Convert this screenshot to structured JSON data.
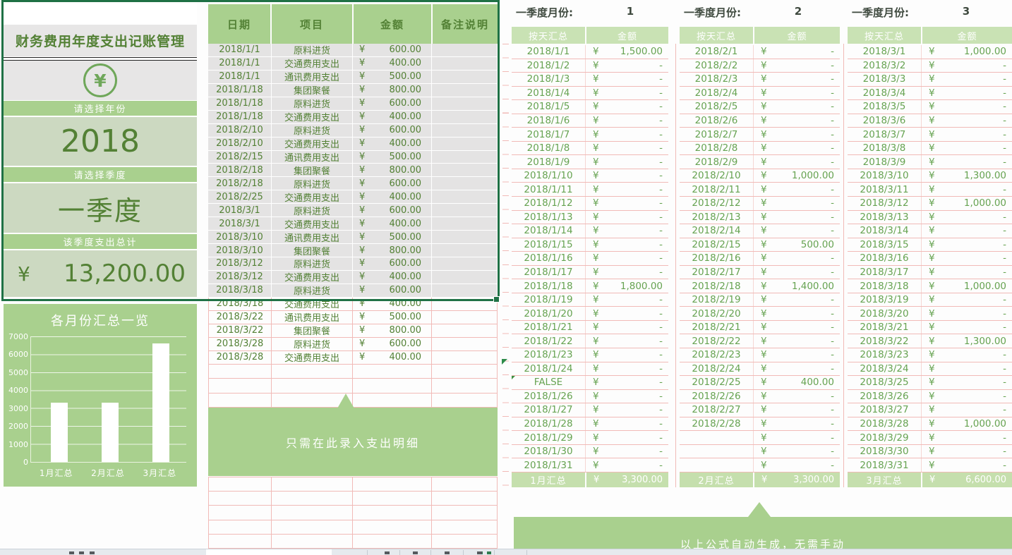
{
  "left_panel": {
    "title": "财务费用年度支出记账管理",
    "icon": "yuan-circle-icon",
    "icon_glyph": "¥",
    "year_prompt": "请选择年份",
    "year_value": "2018",
    "quarter_prompt": "请选择季度",
    "quarter_value": "一季度",
    "total_prompt": "该季度支出总计",
    "currency": "¥",
    "total_value": "13,200.00"
  },
  "chart": {
    "chart_data": {
      "type": "bar",
      "title": "各月份汇总一览",
      "categories": [
        "1月汇总",
        "2月汇总",
        "3月汇总"
      ],
      "values": [
        3300,
        3300,
        6600
      ],
      "ylim": [
        0,
        7000
      ],
      "yticks": [
        "7000",
        "6000",
        "5000",
        "4000",
        "3000",
        "2000",
        "1000",
        "0"
      ],
      "bar_color": "#ffffff",
      "grid": "on",
      "legend": "none"
    }
  },
  "detail_table": {
    "headers": [
      "日期",
      "项目",
      "金额",
      "备注说明"
    ],
    "selected_rows": 19,
    "callout": "只需在此录入支出明细",
    "rows": [
      {
        "date": "2018/1/1",
        "item": "原料进货",
        "cur": "¥",
        "amount": "600.00"
      },
      {
        "date": "2018/1/1",
        "item": "交通费用支出",
        "cur": "¥",
        "amount": "400.00"
      },
      {
        "date": "2018/1/1",
        "item": "通讯费用支出",
        "cur": "¥",
        "amount": "500.00"
      },
      {
        "date": "2018/1/18",
        "item": "集团聚餐",
        "cur": "¥",
        "amount": "800.00"
      },
      {
        "date": "2018/1/18",
        "item": "原料进货",
        "cur": "¥",
        "amount": "600.00"
      },
      {
        "date": "2018/1/18",
        "item": "交通费用支出",
        "cur": "¥",
        "amount": "400.00"
      },
      {
        "date": "2018/2/10",
        "item": "原料进货",
        "cur": "¥",
        "amount": "600.00"
      },
      {
        "date": "2018/2/10",
        "item": "交通费用支出",
        "cur": "¥",
        "amount": "400.00"
      },
      {
        "date": "2018/2/15",
        "item": "通讯费用支出",
        "cur": "¥",
        "amount": "500.00"
      },
      {
        "date": "2018/2/18",
        "item": "集团聚餐",
        "cur": "¥",
        "amount": "800.00"
      },
      {
        "date": "2018/2/18",
        "item": "原料进货",
        "cur": "¥",
        "amount": "600.00"
      },
      {
        "date": "2018/2/25",
        "item": "交通费用支出",
        "cur": "¥",
        "amount": "400.00"
      },
      {
        "date": "2018/3/1",
        "item": "原料进货",
        "cur": "¥",
        "amount": "600.00"
      },
      {
        "date": "2018/3/1",
        "item": "交通费用支出",
        "cur": "¥",
        "amount": "400.00"
      },
      {
        "date": "2018/3/10",
        "item": "通讯费用支出",
        "cur": "¥",
        "amount": "500.00"
      },
      {
        "date": "2018/3/10",
        "item": "集团聚餐",
        "cur": "¥",
        "amount": "800.00"
      },
      {
        "date": "2018/3/12",
        "item": "原料进货",
        "cur": "¥",
        "amount": "600.00"
      },
      {
        "date": "2018/3/12",
        "item": "交通费用支出",
        "cur": "¥",
        "amount": "400.00"
      },
      {
        "date": "2018/3/18",
        "item": "原料进货",
        "cur": "¥",
        "amount": "600.00"
      },
      {
        "date": "2018/3/18",
        "item": "交通费用支出",
        "cur": "¥",
        "amount": "400.00"
      },
      {
        "date": "2018/3/22",
        "item": "通讯费用支出",
        "cur": "¥",
        "amount": "500.00"
      },
      {
        "date": "2018/3/22",
        "item": "集团聚餐",
        "cur": "¥",
        "amount": "800.00"
      },
      {
        "date": "2018/3/28",
        "item": "原料进货",
        "cur": "¥",
        "amount": "600.00"
      },
      {
        "date": "2018/3/28",
        "item": "交通费用支出",
        "cur": "¥",
        "amount": "400.00"
      }
    ]
  },
  "month_tables": [
    {
      "quarter_label": "一季度月份:",
      "month": "1",
      "headers": [
        "按天汇总",
        "金额"
      ],
      "footer": {
        "label": "1月汇总",
        "cur": "¥",
        "amount": "3,300.00"
      },
      "rows": [
        {
          "date": "2018/1/1",
          "cur": "¥",
          "amount": "1,500.00"
        },
        {
          "date": "2018/1/2",
          "cur": "¥",
          "amount": "-"
        },
        {
          "date": "2018/1/3",
          "cur": "¥",
          "amount": "-"
        },
        {
          "date": "2018/1/4",
          "cur": "¥",
          "amount": "-"
        },
        {
          "date": "2018/1/5",
          "cur": "¥",
          "amount": "-"
        },
        {
          "date": "2018/1/6",
          "cur": "¥",
          "amount": "-"
        },
        {
          "date": "2018/1/7",
          "cur": "¥",
          "amount": "-"
        },
        {
          "date": "2018/1/8",
          "cur": "¥",
          "amount": "-"
        },
        {
          "date": "2018/1/9",
          "cur": "¥",
          "amount": "-"
        },
        {
          "date": "2018/1/10",
          "cur": "¥",
          "amount": "-"
        },
        {
          "date": "2018/1/11",
          "cur": "¥",
          "amount": "-"
        },
        {
          "date": "2018/1/12",
          "cur": "¥",
          "amount": "-"
        },
        {
          "date": "2018/1/13",
          "cur": "¥",
          "amount": "-"
        },
        {
          "date": "2018/1/14",
          "cur": "¥",
          "amount": "-"
        },
        {
          "date": "2018/1/15",
          "cur": "¥",
          "amount": "-"
        },
        {
          "date": "2018/1/16",
          "cur": "¥",
          "amount": "-"
        },
        {
          "date": "2018/1/17",
          "cur": "¥",
          "amount": "-"
        },
        {
          "date": "2018/1/18",
          "cur": "¥",
          "amount": "1,800.00"
        },
        {
          "date": "2018/1/19",
          "cur": "¥",
          "amount": "-"
        },
        {
          "date": "2018/1/20",
          "cur": "¥",
          "amount": "-"
        },
        {
          "date": "2018/1/21",
          "cur": "¥",
          "amount": "-"
        },
        {
          "date": "2018/1/22",
          "cur": "¥",
          "amount": "-"
        },
        {
          "date": "2018/1/23",
          "cur": "¥",
          "amount": "-"
        },
        {
          "date": "2018/1/24",
          "cur": "¥",
          "amount": "-"
        },
        {
          "date": "FALSE",
          "cur": "¥",
          "amount": "-",
          "error": true
        },
        {
          "date": "2018/1/26",
          "cur": "¥",
          "amount": "-"
        },
        {
          "date": "2018/1/27",
          "cur": "¥",
          "amount": "-"
        },
        {
          "date": "2018/1/28",
          "cur": "¥",
          "amount": "-"
        },
        {
          "date": "2018/1/29",
          "cur": "¥",
          "amount": "-"
        },
        {
          "date": "2018/1/30",
          "cur": "¥",
          "amount": "-"
        },
        {
          "date": "2018/1/31",
          "cur": "¥",
          "amount": "-"
        }
      ]
    },
    {
      "quarter_label": "一季度月份:",
      "month": "2",
      "headers": [
        "按天汇总",
        "金额"
      ],
      "footer": {
        "label": "2月汇总",
        "cur": "¥",
        "amount": "3,300.00"
      },
      "rows": [
        {
          "date": "2018/2/1",
          "cur": "¥",
          "amount": "-"
        },
        {
          "date": "2018/2/2",
          "cur": "¥",
          "amount": "-"
        },
        {
          "date": "2018/2/3",
          "cur": "¥",
          "amount": "-"
        },
        {
          "date": "2018/2/4",
          "cur": "¥",
          "amount": "-"
        },
        {
          "date": "2018/2/5",
          "cur": "¥",
          "amount": "-"
        },
        {
          "date": "2018/2/6",
          "cur": "¥",
          "amount": "-"
        },
        {
          "date": "2018/2/7",
          "cur": "¥",
          "amount": "-"
        },
        {
          "date": "2018/2/8",
          "cur": "¥",
          "amount": "-"
        },
        {
          "date": "2018/2/9",
          "cur": "¥",
          "amount": "-"
        },
        {
          "date": "2018/2/10",
          "cur": "¥",
          "amount": "1,000.00"
        },
        {
          "date": "2018/2/11",
          "cur": "¥",
          "amount": "-"
        },
        {
          "date": "2018/2/12",
          "cur": "¥",
          "amount": "-"
        },
        {
          "date": "2018/2/13",
          "cur": "¥",
          "amount": "-"
        },
        {
          "date": "2018/2/14",
          "cur": "¥",
          "amount": "-"
        },
        {
          "date": "2018/2/15",
          "cur": "¥",
          "amount": "500.00"
        },
        {
          "date": "2018/2/16",
          "cur": "¥",
          "amount": "-"
        },
        {
          "date": "2018/2/17",
          "cur": "¥",
          "amount": "-"
        },
        {
          "date": "2018/2/18",
          "cur": "¥",
          "amount": "1,400.00"
        },
        {
          "date": "2018/2/19",
          "cur": "¥",
          "amount": "-"
        },
        {
          "date": "2018/2/20",
          "cur": "¥",
          "amount": "-"
        },
        {
          "date": "2018/2/21",
          "cur": "¥",
          "amount": "-"
        },
        {
          "date": "2018/2/22",
          "cur": "¥",
          "amount": "-"
        },
        {
          "date": "2018/2/23",
          "cur": "¥",
          "amount": "-"
        },
        {
          "date": "2018/2/24",
          "cur": "¥",
          "amount": "-"
        },
        {
          "date": "2018/2/25",
          "cur": "¥",
          "amount": "400.00"
        },
        {
          "date": "2018/2/26",
          "cur": "¥",
          "amount": "-"
        },
        {
          "date": "2018/2/27",
          "cur": "¥",
          "amount": "-"
        },
        {
          "date": "2018/2/28",
          "cur": "¥",
          "amount": "-"
        },
        {
          "date": "",
          "cur": "¥",
          "amount": "-"
        },
        {
          "date": "",
          "cur": "¥",
          "amount": "-"
        },
        {
          "date": "",
          "cur": "¥",
          "amount": "-"
        }
      ]
    },
    {
      "quarter_label": "一季度月份:",
      "month": "3",
      "headers": [
        "按天汇总",
        "金额"
      ],
      "footer": {
        "label": "3月汇总",
        "cur": "¥",
        "amount": "6,600.00"
      },
      "rows": [
        {
          "date": "2018/3/1",
          "cur": "¥",
          "amount": "1,000.00"
        },
        {
          "date": "2018/3/2",
          "cur": "¥",
          "amount": "-"
        },
        {
          "date": "2018/3/3",
          "cur": "¥",
          "amount": "-"
        },
        {
          "date": "2018/3/4",
          "cur": "¥",
          "amount": "-"
        },
        {
          "date": "2018/3/5",
          "cur": "¥",
          "amount": "-"
        },
        {
          "date": "2018/3/6",
          "cur": "¥",
          "amount": "-"
        },
        {
          "date": "2018/3/7",
          "cur": "¥",
          "amount": "-"
        },
        {
          "date": "2018/3/8",
          "cur": "¥",
          "amount": "-"
        },
        {
          "date": "2018/3/9",
          "cur": "¥",
          "amount": "-"
        },
        {
          "date": "2018/3/10",
          "cur": "¥",
          "amount": "1,300.00"
        },
        {
          "date": "2018/3/11",
          "cur": "¥",
          "amount": "-"
        },
        {
          "date": "2018/3/12",
          "cur": "¥",
          "amount": "1,000.00"
        },
        {
          "date": "2018/3/13",
          "cur": "¥",
          "amount": "-"
        },
        {
          "date": "2018/3/14",
          "cur": "¥",
          "amount": "-"
        },
        {
          "date": "2018/3/15",
          "cur": "¥",
          "amount": "-"
        },
        {
          "date": "2018/3/16",
          "cur": "¥",
          "amount": "-"
        },
        {
          "date": "2018/3/17",
          "cur": "¥",
          "amount": "-"
        },
        {
          "date": "2018/3/18",
          "cur": "¥",
          "amount": "1,000.00"
        },
        {
          "date": "2018/3/19",
          "cur": "¥",
          "amount": "-"
        },
        {
          "date": "2018/3/20",
          "cur": "¥",
          "amount": "-"
        },
        {
          "date": "2018/3/21",
          "cur": "¥",
          "amount": "-"
        },
        {
          "date": "2018/3/22",
          "cur": "¥",
          "amount": "1,300.00"
        },
        {
          "date": "2018/3/23",
          "cur": "¥",
          "amount": "-"
        },
        {
          "date": "2018/3/24",
          "cur": "¥",
          "amount": "-"
        },
        {
          "date": "2018/3/25",
          "cur": "¥",
          "amount": "-"
        },
        {
          "date": "2018/3/26",
          "cur": "¥",
          "amount": "-"
        },
        {
          "date": "2018/3/27",
          "cur": "¥",
          "amount": "-"
        },
        {
          "date": "2018/3/28",
          "cur": "¥",
          "amount": "1,000.00"
        },
        {
          "date": "2018/3/29",
          "cur": "¥",
          "amount": "-"
        },
        {
          "date": "2018/3/30",
          "cur": "¥",
          "amount": "-"
        },
        {
          "date": "2018/3/31",
          "cur": "¥",
          "amount": "-"
        }
      ]
    }
  ],
  "bottom_callout": {
    "text": "以上公式自动生成，无需手动"
  },
  "colors": {
    "selection_border": "#1f7145",
    "band_green": "#a9d08e",
    "light_green": "#c9e2b4",
    "value_bg": "#ccd9c1",
    "dark_green_text": "#538135",
    "row_green_text": "#66a351",
    "grid_pink": "#f1bab7",
    "panel_gray": "#e7e6e6"
  }
}
